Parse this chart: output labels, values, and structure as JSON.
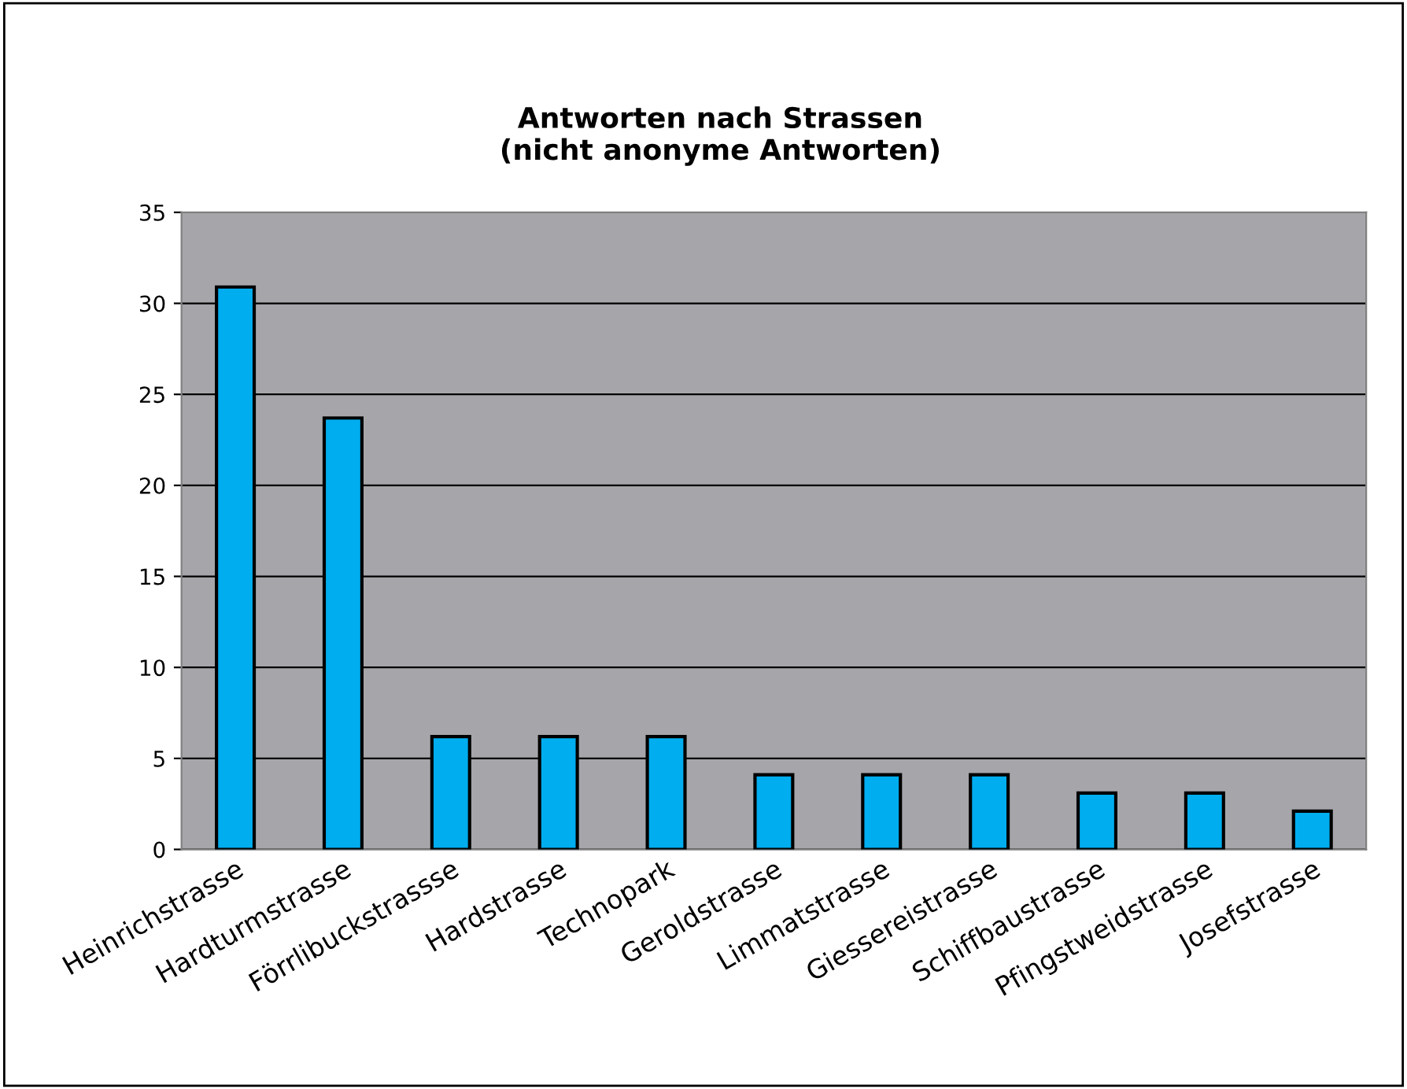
{
  "chart_data": {
    "type": "bar",
    "title": "Antworten nach Strassen\n(nicht anonyme Antworten)",
    "categories": [
      "Heinrichstrasse",
      "Hardturmstrasse",
      "Förrlibuckstrassse",
      "Hardstrasse",
      "Technopark",
      "Geroldstrasse",
      "Limmatstrasse",
      "Giessereistrasse",
      "Schiffbaustrasse",
      "Pfingstweidstrasse",
      "Josefstrasse"
    ],
    "values": [
      30.9,
      23.7,
      6.2,
      6.2,
      6.2,
      4.1,
      4.1,
      4.1,
      3.1,
      3.1,
      2.1
    ],
    "color": "#00adef",
    "ylim": [
      0,
      35
    ],
    "yticks": [
      0,
      5,
      10,
      15,
      20,
      25,
      30,
      35
    ],
    "grid": "y"
  }
}
